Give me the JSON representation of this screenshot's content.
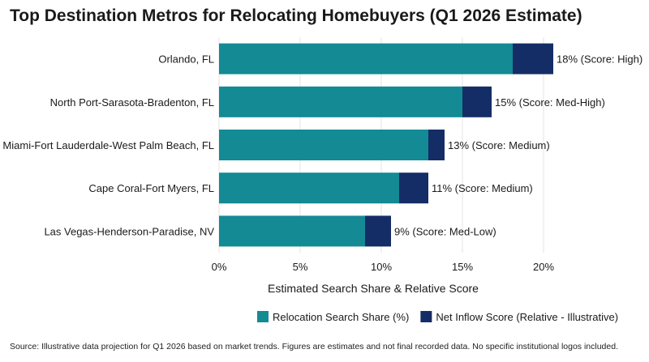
{
  "chart_data": {
    "type": "bar",
    "orientation": "horizontal",
    "stacked": true,
    "title": "Top Destination Metros for Relocating Homebuyers (Q1 2026 Estimate)",
    "xlabel": "Estimated Search Share & Relative Score",
    "ylabel": "",
    "xlim": [
      0,
      22
    ],
    "x_ticks": [
      0,
      5,
      10,
      15,
      20
    ],
    "x_tick_labels": [
      "0%",
      "5%",
      "10%",
      "15%",
      "20%"
    ],
    "grid": "vertical",
    "legend_position": "bottom-right",
    "categories": [
      "Orlando, FL",
      "North Port-Sarasota-Bradenton, FL",
      "Miami-Fort Lauderdale-West Palm Beach, FL",
      "Cape Coral-Fort Myers, FL",
      "Las Vegas-Henderson-Paradise, NV"
    ],
    "series": [
      {
        "name": "Relocation Search Share (%)",
        "color": "#138a94",
        "values": [
          18.1,
          15.0,
          12.9,
          11.1,
          9.0
        ]
      },
      {
        "name": "Net Inflow Score (Relative - Illustrative)",
        "color": "#142d66",
        "values": [
          2.5,
          1.8,
          1.0,
          1.8,
          1.6
        ]
      }
    ],
    "data_labels": [
      "18% (Score: High)",
      "15% (Score: Med-High)",
      "13% (Score: Medium)",
      "11% (Score: Medium)",
      "9% (Score: Med-Low)"
    ]
  },
  "source_note": "Source: Illustrative data projection for Q1 2026 based on market trends. Figures are estimates and not final recorded data. No specific institutional logos included."
}
